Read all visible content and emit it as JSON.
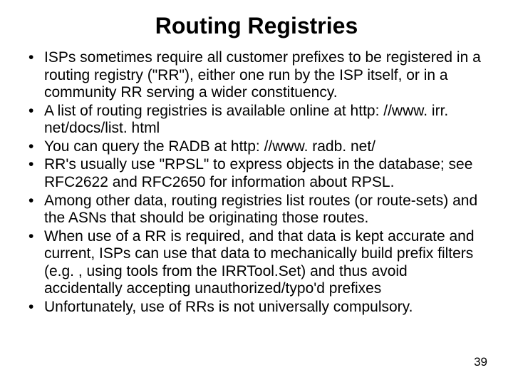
{
  "title": "Routing Registries",
  "bullets": [
    "ISPs sometimes require all customer prefixes to be registered in a routing registry (\"RR\"), either one run by the ISP itself, or in a community RR serving a wider constituency.",
    "A list of routing registries is available online at http: //www. irr. net/docs/list. html",
    "You can query the RADB at http: //www. radb. net/",
    "RR's usually use \"RPSL\" to express objects in the database; see RFC2622 and RFC2650 for information about RPSL.",
    "Among other data, routing registries list routes (or route-sets) and the ASNs that should be originating those routes.",
    "When use of a RR is required, and that data is kept accurate and current, ISPs can use that data to mechanically build prefix filters (e.g. , using tools from the IRRTool.Set) and thus avoid accidentally accepting unauthorized/typo'd prefixes",
    "Unfortunately, use of RRs is not universally compulsory."
  ],
  "page_number": "39",
  "colors": {
    "background": "#ffffff",
    "text": "#000000"
  },
  "typography": {
    "title_fontsize": 32,
    "body_fontsize": 21,
    "pagenum_fontsize": 17,
    "font_family": "Arial"
  }
}
